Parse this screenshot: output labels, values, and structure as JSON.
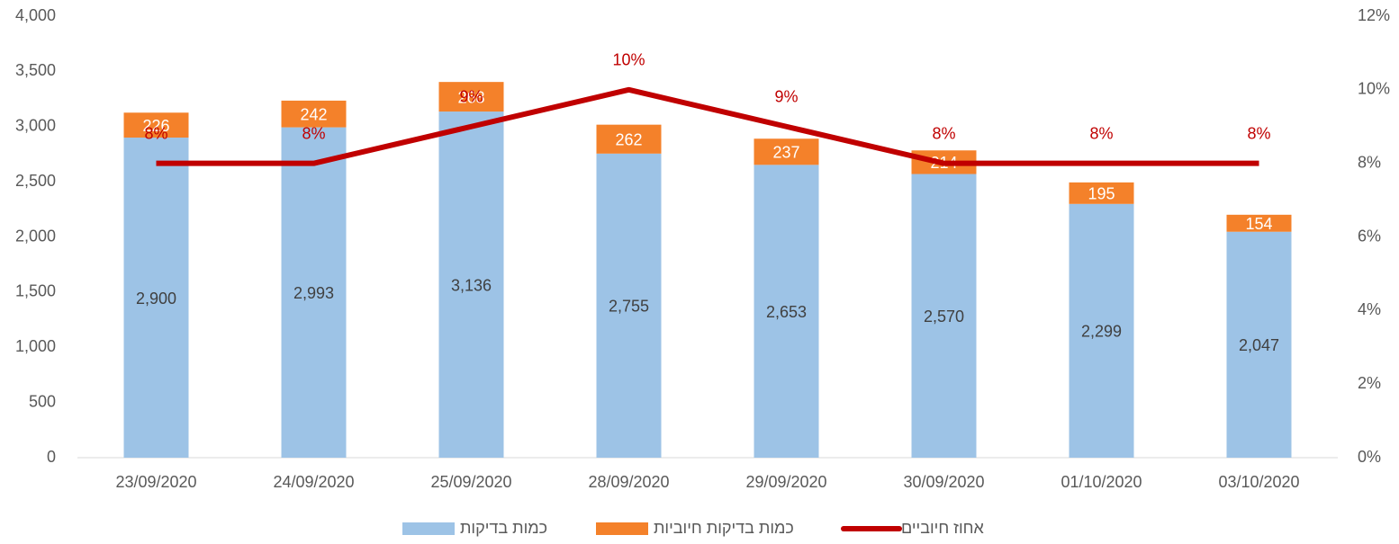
{
  "chart_data": {
    "type": "bar",
    "stacked": true,
    "categories": [
      "23/09/2020",
      "24/09/2020",
      "25/09/2020",
      "28/09/2020",
      "29/09/2020",
      "30/09/2020",
      "01/10/2020",
      "03/10/2020"
    ],
    "series": [
      {
        "name": "כמות בדיקות",
        "color": "#9dc3e6",
        "values": [
          2900,
          2993,
          3136,
          2755,
          2653,
          2570,
          2299,
          2047
        ],
        "value_labels": [
          "2,900",
          "2,993",
          "3,136",
          "2,755",
          "2,653",
          "2,570",
          "2,299",
          "2,047"
        ]
      },
      {
        "name": "כמות בדיקות חיוביות",
        "color": "#f4812a",
        "values": [
          226,
          242,
          268,
          262,
          237,
          214,
          195,
          154
        ]
      },
      {
        "name": "אחוז חיוביים",
        "type": "line",
        "axis": "y2",
        "color": "#c00000",
        "values": [
          8,
          8,
          9,
          10,
          9,
          8,
          8,
          8
        ],
        "value_labels": [
          "8%",
          "8%",
          "9%",
          "10%",
          "9%",
          "8%",
          "8%",
          "8%"
        ]
      }
    ],
    "ylim": [
      0,
      4000
    ],
    "yticks": [
      0,
      {
        "value": 500,
        "label": "500"
      },
      {
        "value": 1000,
        "label": "1,000"
      },
      {
        "value": 1500,
        "label": "1,500"
      },
      {
        "value": 2000,
        "label": "2,000"
      },
      {
        "value": 2500,
        "label": "2,500"
      },
      {
        "value": 3000,
        "label": "3,000"
      },
      {
        "value": 3500,
        "label": "3,500"
      },
      {
        "value": 4000,
        "label": "4,000"
      }
    ],
    "y2lim": [
      0,
      12
    ],
    "y2ticks": [
      {
        "value": 0,
        "label": "0%"
      },
      {
        "value": 2,
        "label": "2%"
      },
      {
        "value": 4,
        "label": "4%"
      },
      {
        "value": 6,
        "label": "6%"
      },
      {
        "value": 8,
        "label": "8%"
      },
      {
        "value": 10,
        "label": "10%"
      },
      {
        "value": 12,
        "label": "12%"
      }
    ],
    "grid": false,
    "legend": "bottom"
  }
}
